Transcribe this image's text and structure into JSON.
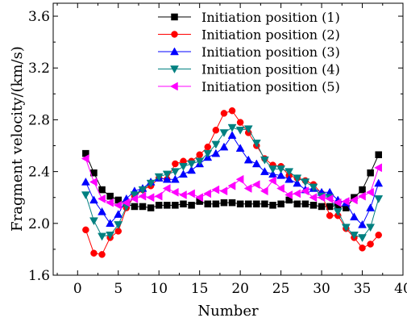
{
  "chart_data": {
    "type": "line",
    "xlabel": "Number",
    "ylabel": "Fragment velocity/(km/s)",
    "xlim": [
      -3,
      40
    ],
    "ylim": [
      1.6,
      3.7
    ],
    "xticks": [
      "0",
      "5",
      "10",
      "15",
      "20",
      "25",
      "30",
      "35",
      "40"
    ],
    "yticks": [
      "1.6",
      "2.0",
      "2.4",
      "2.8",
      "3.2",
      "3.6"
    ],
    "legend_position": "top-right",
    "x": [
      1,
      2,
      3,
      4,
      5,
      6,
      7,
      8,
      9,
      10,
      11,
      12,
      13,
      14,
      15,
      16,
      17,
      18,
      19,
      20,
      21,
      22,
      23,
      24,
      25,
      26,
      27,
      28,
      29,
      30,
      31,
      32,
      33,
      34,
      35,
      36,
      37
    ],
    "series": [
      {
        "name": "Initiation position (1)",
        "color": "#000000",
        "marker": "square",
        "values": [
          2.54,
          2.39,
          2.26,
          2.21,
          2.18,
          2.15,
          2.13,
          2.13,
          2.12,
          2.14,
          2.14,
          2.14,
          2.15,
          2.14,
          2.17,
          2.15,
          2.15,
          2.16,
          2.16,
          2.15,
          2.15,
          2.15,
          2.15,
          2.14,
          2.15,
          2.18,
          2.15,
          2.15,
          2.14,
          2.13,
          2.13,
          2.14,
          2.12,
          2.2,
          2.26,
          2.39,
          2.53
        ]
      },
      {
        "name": "Initiation position (2)",
        "color": "#ff0000",
        "marker": "circle",
        "values": [
          1.95,
          1.77,
          1.76,
          1.89,
          1.94,
          2.12,
          2.21,
          2.26,
          2.29,
          2.35,
          2.34,
          2.46,
          2.48,
          2.48,
          2.53,
          2.59,
          2.72,
          2.85,
          2.87,
          2.78,
          2.7,
          2.6,
          2.5,
          2.45,
          2.44,
          2.37,
          2.35,
          2.33,
          2.3,
          2.23,
          2.06,
          2.06,
          1.96,
          1.89,
          1.81,
          1.84,
          1.91
        ]
      },
      {
        "name": "Initiation position (3)",
        "color": "#0000ff",
        "marker": "triangle-up",
        "values": [
          2.32,
          2.18,
          2.09,
          2.0,
          2.07,
          2.19,
          2.25,
          2.27,
          2.32,
          2.35,
          2.34,
          2.34,
          2.38,
          2.41,
          2.46,
          2.51,
          2.54,
          2.59,
          2.68,
          2.58,
          2.49,
          2.46,
          2.4,
          2.38,
          2.37,
          2.34,
          2.31,
          2.26,
          2.27,
          2.24,
          2.24,
          2.18,
          2.16,
          2.05,
          1.99,
          2.12,
          2.31
        ]
      },
      {
        "name": "Initiation position (4)",
        "color": "#008080",
        "marker": "triangle-down",
        "values": [
          2.22,
          2.02,
          1.9,
          1.91,
          1.99,
          2.13,
          2.22,
          2.26,
          2.31,
          2.36,
          2.38,
          2.4,
          2.44,
          2.46,
          2.48,
          2.54,
          2.61,
          2.7,
          2.74,
          2.72,
          2.73,
          2.62,
          2.49,
          2.42,
          2.42,
          2.4,
          2.35,
          2.32,
          2.28,
          2.21,
          2.2,
          2.09,
          1.97,
          1.91,
          1.89,
          1.97,
          2.19
        ]
      },
      {
        "name": "Initiation position (5)",
        "color": "#ff00ff",
        "marker": "triangle-left",
        "values": [
          2.5,
          2.32,
          2.19,
          2.16,
          2.14,
          2.16,
          2.19,
          2.21,
          2.2,
          2.21,
          2.27,
          2.24,
          2.22,
          2.23,
          2.2,
          2.23,
          2.26,
          2.25,
          2.29,
          2.34,
          2.27,
          2.3,
          2.25,
          2.33,
          2.27,
          2.22,
          2.23,
          2.25,
          2.2,
          2.2,
          2.19,
          2.16,
          2.17,
          2.18,
          2.21,
          2.24,
          2.43
        ]
      }
    ]
  }
}
